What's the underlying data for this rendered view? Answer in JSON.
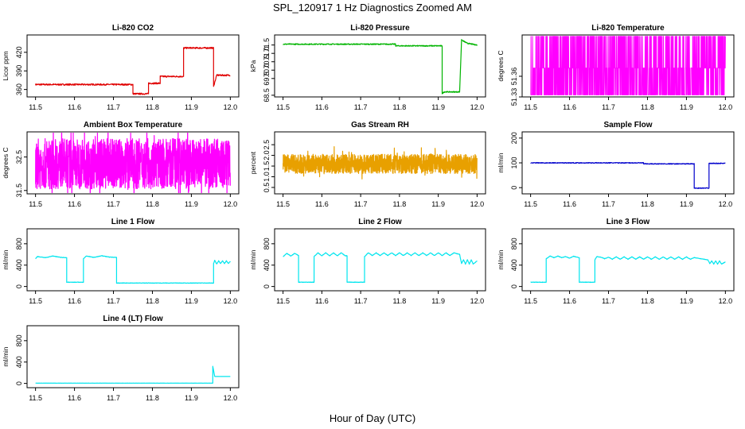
{
  "figure": {
    "title": "SPL_120917  1 Hz Diagnostics Zoomed AM",
    "xlabel": "Hour of Day (UTC)"
  },
  "chart_data": [
    {
      "type": "line",
      "title": "Li-820 CO2",
      "ylabel": "Licor ppm",
      "color": "#e00000",
      "xlim": [
        11.5,
        12.0
      ],
      "ylim": [
        348,
        448
      ],
      "xticks": [
        "11.5",
        "11.6",
        "11.7",
        "11.8",
        "11.9",
        "12.0"
      ],
      "yticks": [
        "360",
        "390",
        "420"
      ],
      "series": [
        {
          "name": "CO2",
          "style": "step",
          "noise": 1.2,
          "points": [
            [
              11.5,
              368
            ],
            [
              11.75,
              368
            ],
            [
              11.75,
              353
            ],
            [
              11.79,
              353
            ],
            [
              11.79,
              370
            ],
            [
              11.82,
              370
            ],
            [
              11.82,
              381
            ],
            [
              11.88,
              381
            ],
            [
              11.88,
              427
            ],
            [
              11.957,
              427
            ],
            [
              11.957,
              365
            ],
            [
              11.965,
              383
            ],
            [
              12.0,
              383
            ]
          ]
        }
      ]
    },
    {
      "type": "line",
      "title": "Li-820 Pressure",
      "ylabel": "kPa",
      "color": "#00b400",
      "xlim": [
        11.5,
        12.0
      ],
      "ylim": [
        68.4,
        72.1
      ],
      "xticks": [
        "11.5",
        "11.6",
        "11.7",
        "11.8",
        "11.9",
        "12.0"
      ],
      "yticks": [
        "68.5",
        "69.5",
        "70.0",
        "70.5",
        "71.0",
        "71.5"
      ],
      "series": [
        {
          "name": "Pressure",
          "style": "step",
          "noise": 0.03,
          "points": [
            [
              11.5,
              71.55
            ],
            [
              11.79,
              71.55
            ],
            [
              11.79,
              71.45
            ],
            [
              11.91,
              71.45
            ],
            [
              11.91,
              68.6
            ],
            [
              11.915,
              68.7
            ],
            [
              11.955,
              68.7
            ],
            [
              11.96,
              71.8
            ],
            [
              11.975,
              71.6
            ],
            [
              12.0,
              71.5
            ]
          ]
        }
      ]
    },
    {
      "type": "line",
      "title": "Li-820 Temperature",
      "ylabel": "degrees C",
      "color": "#ff00ff",
      "xlim": [
        11.5,
        12.0
      ],
      "ylim": [
        51.33,
        51.42
      ],
      "xticks": [
        "11.5",
        "11.6",
        "11.7",
        "11.8",
        "11.9",
        "12.0"
      ],
      "yticks": [
        "51.33",
        "51.36"
      ],
      "series": [
        {
          "name": "Temperature",
          "style": "binary",
          "levels": [
            51.333,
            51.372,
            51.418
          ],
          "points": [
            [
              11.5,
              51.372
            ],
            [
              12.0,
              51.372
            ]
          ]
        }
      ]
    },
    {
      "type": "line",
      "title": "Ambient Box Temperature",
      "ylabel": "degrees C",
      "color": "#ff00ff",
      "xlim": [
        11.5,
        12.0
      ],
      "ylim": [
        31.4,
        33.25
      ],
      "xticks": [
        "11.5",
        "11.6",
        "11.7",
        "11.8",
        "11.9",
        "12.0"
      ],
      "yticks": [
        "31.5",
        "32.5"
      ],
      "series": [
        {
          "name": "Box Temp",
          "style": "noise",
          "noise": 0.75,
          "points": [
            [
              11.5,
              32.3
            ],
            [
              12.0,
              32.3
            ]
          ]
        }
      ]
    },
    {
      "type": "line",
      "title": "Gas Stream RH",
      "ylabel": "percent",
      "color": "#e8a000",
      "xlim": [
        11.5,
        12.0
      ],
      "ylim": [
        0.2,
        3.1
      ],
      "xticks": [
        "11.5",
        "11.6",
        "11.7",
        "11.8",
        "11.9",
        "12.0"
      ],
      "yticks": [
        "0.5",
        "1.0",
        "1.5",
        "2.0",
        "2.5"
      ],
      "series": [
        {
          "name": "RH",
          "style": "noise",
          "noise": 0.45,
          "points": [
            [
              11.5,
              1.6
            ],
            [
              12.0,
              1.6
            ]
          ]
        }
      ]
    },
    {
      "type": "line",
      "title": "Sample Flow",
      "ylabel": "ml/min",
      "color": "#0000cc",
      "xlim": [
        11.5,
        12.0
      ],
      "ylim": [
        -25,
        225
      ],
      "xticks": [
        "11.5",
        "11.6",
        "11.7",
        "11.8",
        "11.9",
        "12.0"
      ],
      "yticks": [
        "0",
        "100",
        "200"
      ],
      "series": [
        {
          "name": "Sample Flow",
          "style": "step",
          "noise": 1.5,
          "points": [
            [
              11.5,
              100
            ],
            [
              11.79,
              100
            ],
            [
              11.79,
              96
            ],
            [
              11.92,
              96
            ],
            [
              11.92,
              -2
            ],
            [
              11.958,
              -2
            ],
            [
              11.958,
              98
            ],
            [
              12.0,
              98
            ]
          ]
        }
      ]
    },
    {
      "type": "line",
      "title": "Line 1 Flow",
      "ylabel": "ml/min",
      "color": "#00e5ee",
      "xlim": [
        11.5,
        12.0
      ],
      "ylim": [
        -80,
        1080
      ],
      "xticks": [
        "11.5",
        "11.6",
        "11.7",
        "11.8",
        "11.9",
        "12.0"
      ],
      "yticks": [
        "0",
        "400",
        "800"
      ],
      "series": [
        {
          "name": "Line 1",
          "style": "step",
          "noise": 4,
          "points": [
            [
              11.5,
              520
            ],
            [
              11.505,
              560
            ],
            [
              11.525,
              540
            ],
            [
              11.545,
              570
            ],
            [
              11.565,
              545
            ],
            [
              11.58,
              540
            ],
            [
              11.58,
              80
            ],
            [
              11.623,
              80
            ],
            [
              11.623,
              520
            ],
            [
              11.63,
              570
            ],
            [
              11.65,
              545
            ],
            [
              11.67,
              575
            ],
            [
              11.69,
              550
            ],
            [
              11.708,
              545
            ],
            [
              11.708,
              65
            ],
            [
              11.957,
              65
            ],
            [
              11.957,
              430
            ],
            [
              11.96,
              490
            ],
            [
              11.965,
              420
            ],
            [
              11.97,
              480
            ],
            [
              11.975,
              430
            ],
            [
              11.98,
              480
            ],
            [
              11.985,
              430
            ],
            [
              11.99,
              480
            ],
            [
              11.995,
              430
            ],
            [
              12.0,
              470
            ]
          ]
        }
      ]
    },
    {
      "type": "line",
      "title": "Line 2 Flow",
      "ylabel": "ml/min",
      "color": "#00e5ee",
      "xlim": [
        11.5,
        12.0
      ],
      "ylim": [
        -80,
        1080
      ],
      "xticks": [
        "11.5",
        "11.6",
        "11.7",
        "11.8",
        "11.9",
        "12.0"
      ],
      "yticks": [
        "0",
        "400",
        "800"
      ],
      "series": [
        {
          "name": "Line 2",
          "style": "step",
          "noise": 4,
          "points": [
            [
              11.5,
              560
            ],
            [
              11.51,
              620
            ],
            [
              11.52,
              570
            ],
            [
              11.53,
              620
            ],
            [
              11.54,
              580
            ],
            [
              11.54,
              80
            ],
            [
              11.58,
              80
            ],
            [
              11.58,
              560
            ],
            [
              11.59,
              630
            ],
            [
              11.6,
              575
            ],
            [
              11.61,
              630
            ],
            [
              11.62,
              575
            ],
            [
              11.63,
              630
            ],
            [
              11.64,
              575
            ],
            [
              11.65,
              630
            ],
            [
              11.66,
              575
            ],
            [
              11.665,
              575
            ],
            [
              11.665,
              80
            ],
            [
              11.71,
              80
            ],
            [
              11.71,
              560
            ],
            [
              11.72,
              630
            ],
            [
              11.73,
              580
            ],
            [
              11.74,
              630
            ],
            [
              11.75,
              580
            ],
            [
              11.76,
              630
            ],
            [
              11.77,
              580
            ],
            [
              11.78,
              630
            ],
            [
              11.79,
              580
            ],
            [
              11.8,
              630
            ],
            [
              11.81,
              580
            ],
            [
              11.82,
              630
            ],
            [
              11.83,
              580
            ],
            [
              11.84,
              630
            ],
            [
              11.85,
              580
            ],
            [
              11.86,
              630
            ],
            [
              11.87,
              580
            ],
            [
              11.88,
              630
            ],
            [
              11.89,
              580
            ],
            [
              11.9,
              630
            ],
            [
              11.91,
              580
            ],
            [
              11.92,
              630
            ],
            [
              11.93,
              580
            ],
            [
              11.94,
              630
            ],
            [
              11.955,
              600
            ],
            [
              11.96,
              430
            ],
            [
              11.965,
              500
            ],
            [
              11.97,
              420
            ],
            [
              11.975,
              500
            ],
            [
              11.98,
              420
            ],
            [
              11.985,
              500
            ],
            [
              11.99,
              420
            ],
            [
              12.0,
              480
            ]
          ]
        }
      ]
    },
    {
      "type": "line",
      "title": "Line 3 Flow",
      "ylabel": "ml/min",
      "color": "#00e5ee",
      "xlim": [
        11.5,
        12.0
      ],
      "ylim": [
        -80,
        1080
      ],
      "xticks": [
        "11.5",
        "11.6",
        "11.7",
        "11.8",
        "11.9",
        "12.0"
      ],
      "yticks": [
        "0",
        "400",
        "800"
      ],
      "series": [
        {
          "name": "Line 3",
          "style": "step",
          "noise": 4,
          "points": [
            [
              11.5,
              80
            ],
            [
              11.54,
              80
            ],
            [
              11.54,
              520
            ],
            [
              11.55,
              570
            ],
            [
              11.56,
              540
            ],
            [
              11.57,
              570
            ],
            [
              11.58,
              540
            ],
            [
              11.59,
              560
            ],
            [
              11.6,
              530
            ],
            [
              11.61,
              565
            ],
            [
              11.625,
              540
            ],
            [
              11.625,
              80
            ],
            [
              11.665,
              80
            ],
            [
              11.665,
              500
            ],
            [
              11.67,
              560
            ],
            [
              11.68,
              550
            ],
            [
              11.69,
              520
            ],
            [
              11.7,
              550
            ],
            [
              11.71,
              510
            ],
            [
              11.72,
              555
            ],
            [
              11.73,
              510
            ],
            [
              11.74,
              555
            ],
            [
              11.75,
              510
            ],
            [
              11.76,
              555
            ],
            [
              11.77,
              510
            ],
            [
              11.78,
              555
            ],
            [
              11.79,
              510
            ],
            [
              11.8,
              555
            ],
            [
              11.81,
              510
            ],
            [
              11.82,
              555
            ],
            [
              11.83,
              510
            ],
            [
              11.84,
              555
            ],
            [
              11.85,
              510
            ],
            [
              11.86,
              555
            ],
            [
              11.87,
              510
            ],
            [
              11.88,
              555
            ],
            [
              11.89,
              510
            ],
            [
              11.9,
              555
            ],
            [
              11.91,
              510
            ],
            [
              11.92,
              540
            ],
            [
              11.955,
              500
            ],
            [
              11.96,
              430
            ],
            [
              11.965,
              480
            ],
            [
              11.97,
              420
            ],
            [
              11.975,
              480
            ],
            [
              11.98,
              420
            ],
            [
              11.985,
              480
            ],
            [
              11.99,
              420
            ],
            [
              12.0,
              460
            ]
          ]
        }
      ]
    },
    {
      "type": "line",
      "title": "Line 4 (LT) Flow",
      "ylabel": "ml/min",
      "color": "#00e5ee",
      "xlim": [
        11.5,
        12.0
      ],
      "ylim": [
        -80,
        1080
      ],
      "xticks": [
        "11.5",
        "11.6",
        "11.7",
        "11.8",
        "11.9",
        "12.0"
      ],
      "yticks": [
        "0",
        "400",
        "800"
      ],
      "series": [
        {
          "name": "Line 4",
          "style": "step",
          "noise": 1,
          "points": [
            [
              11.5,
              5
            ],
            [
              11.955,
              5
            ],
            [
              11.955,
              320
            ],
            [
              11.96,
              130
            ],
            [
              12.0,
              130
            ]
          ]
        }
      ]
    }
  ]
}
